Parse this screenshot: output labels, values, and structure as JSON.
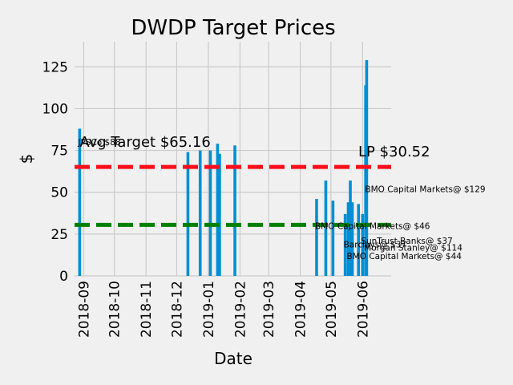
{
  "chart_data": {
    "type": "bar",
    "title": "DWDP Target Prices",
    "xlabel": "Date",
    "ylabel": "$",
    "ylim": [
      0,
      140
    ],
    "yticks": [
      0,
      25,
      50,
      75,
      100,
      125
    ],
    "xlim": [
      "2018-08-23",
      "2019-06-29"
    ],
    "xticks": [
      "2018-09",
      "2018-10",
      "2018-11",
      "2018-12",
      "2019-01",
      "2019-02",
      "2019-03",
      "2019-04",
      "2019-05",
      "2019-06"
    ],
    "grid": true,
    "bar_color": "#008fd5",
    "values": [
      {
        "date": "2018-08-28",
        "value": 88
      },
      {
        "date": "2018-12-12",
        "value": 74
      },
      {
        "date": "2018-12-24",
        "value": 75
      },
      {
        "date": "2019-01-03",
        "value": 75
      },
      {
        "date": "2019-01-10",
        "value": 79
      },
      {
        "date": "2019-01-12",
        "value": 73
      },
      {
        "date": "2019-01-27",
        "value": 78
      },
      {
        "date": "2019-04-17",
        "value": 46
      },
      {
        "date": "2019-04-26",
        "value": 57
      },
      {
        "date": "2019-05-03",
        "value": 45
      },
      {
        "date": "2019-05-15",
        "value": 37
      },
      {
        "date": "2019-05-18",
        "value": 44
      },
      {
        "date": "2019-05-20",
        "value": 57
      },
      {
        "date": "2019-05-22",
        "value": 44
      },
      {
        "date": "2019-05-28",
        "value": 43
      },
      {
        "date": "2019-06-01",
        "value": 37
      },
      {
        "date": "2019-06-04",
        "value": 114
      },
      {
        "date": "2019-06-05",
        "value": 129
      }
    ],
    "reference_lines": [
      {
        "label": "Avg Target $65.16",
        "value": 65.16,
        "color": "#fc0d1b"
      },
      {
        "label": "LP $30.52",
        "value": 30.52,
        "color": "#008000"
      }
    ],
    "annotations": [
      {
        "text": "JPSCo $88",
        "date": "2018-08-28",
        "value": 80
      },
      {
        "text": "BMO Capital Markets@ $129",
        "date": "2019-06-05",
        "value": 52
      },
      {
        "text": "BMO Capital Markets@ $46",
        "date": "2019-04-17",
        "value": 30
      },
      {
        "text": "SunTrust Banks@ $37",
        "date": "2019-06-01",
        "value": 21
      },
      {
        "text": "Barclays@ $37",
        "date": "2019-05-15",
        "value": 19
      },
      {
        "text": "Morgan Stanley@ $114",
        "date": "2019-06-04",
        "value": 17
      },
      {
        "text": "BMO Capital Markets@ $44",
        "date": "2019-05-18",
        "value": 12
      }
    ]
  }
}
